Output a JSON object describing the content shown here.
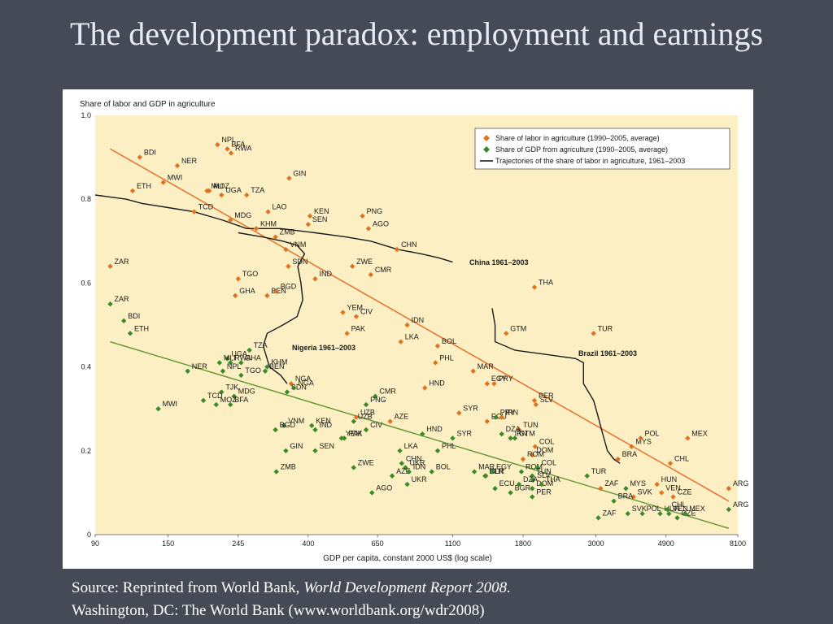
{
  "slide": {
    "title": "The development paradox: employment and earnings",
    "source_prefix": "Source: Reprinted from World Bank, ",
    "source_title": "World Development Report 2008.",
    "source_line2": "Washington, DC: The World Bank (www.worldbank.org/wdr2008)"
  },
  "colors": {
    "background": "#464a57",
    "plot_area": "#fcefc3",
    "labor_series": "#e07320",
    "gdp_series": "#3a8a2a",
    "trajectory": "#1a1a1a",
    "labor_trend": "#e8702a",
    "gdp_trend": "#6a9a3a"
  },
  "chart_data": {
    "type": "scatter",
    "title": "",
    "ylabel": "Share of labor and GDP in agriculture",
    "xlabel": "GDP per capita, constant 2000 US$ (log scale)",
    "x_scale": "log",
    "xlim": [
      90,
      8100
    ],
    "ylim": [
      0,
      1.0
    ],
    "x_ticks": [
      90,
      150,
      245,
      400,
      650,
      1100,
      1800,
      3000,
      4900,
      8100
    ],
    "y_ticks": [
      0,
      0.2,
      0.4,
      0.6,
      0.8,
      1.0
    ],
    "y_tick_labels": [
      "0",
      "0.2",
      "0.4",
      "0.6",
      "0.8",
      "1.0"
    ],
    "grid": false,
    "legend_position": "top-right",
    "legend": [
      "Share of labor in agriculture (1990–2005, average)",
      "Share of GDP from agriculture (1990–2005, average)",
      "Trajectories of the share of labor in agriculture, 1961–2003"
    ],
    "series": [
      {
        "name": "Share of labor in agriculture (1990–2005, average)",
        "marker": "diamond",
        "points": [
          {
            "label": "BDI",
            "x": 123,
            "y": 0.9
          },
          {
            "label": "NER",
            "x": 160,
            "y": 0.88
          },
          {
            "label": "NPL",
            "x": 212,
            "y": 0.93
          },
          {
            "label": "BFA",
            "x": 227,
            "y": 0.92
          },
          {
            "label": "RWA",
            "x": 233,
            "y": 0.91
          },
          {
            "label": "ETH",
            "x": 117,
            "y": 0.82
          },
          {
            "label": "MWI",
            "x": 145,
            "y": 0.84
          },
          {
            "label": "MLI",
            "x": 197,
            "y": 0.82
          },
          {
            "label": "MOZ",
            "x": 200,
            "y": 0.82
          },
          {
            "label": "UGA",
            "x": 218,
            "y": 0.81
          },
          {
            "label": "TZA",
            "x": 260,
            "y": 0.81
          },
          {
            "label": "GIN",
            "x": 350,
            "y": 0.85
          },
          {
            "label": "TCD",
            "x": 180,
            "y": 0.77
          },
          {
            "label": "MDG",
            "x": 232,
            "y": 0.75
          },
          {
            "label": "LAO",
            "x": 302,
            "y": 0.77
          },
          {
            "label": "KEN",
            "x": 405,
            "y": 0.76
          },
          {
            "label": "SEN",
            "x": 400,
            "y": 0.74
          },
          {
            "label": "KHM",
            "x": 278,
            "y": 0.73
          },
          {
            "label": "ZMB",
            "x": 318,
            "y": 0.71
          },
          {
            "label": "PNG",
            "x": 585,
            "y": 0.76
          },
          {
            "label": "AGO",
            "x": 610,
            "y": 0.73
          },
          {
            "label": "ZAR",
            "x": 100,
            "y": 0.64
          },
          {
            "label": "VNM",
            "x": 342,
            "y": 0.68
          },
          {
            "label": "SDN",
            "x": 348,
            "y": 0.64
          },
          {
            "label": "CHN",
            "x": 745,
            "y": 0.68
          },
          {
            "label": "ZWE",
            "x": 545,
            "y": 0.64
          },
          {
            "label": "CMR",
            "x": 620,
            "y": 0.62
          },
          {
            "label": "IND",
            "x": 420,
            "y": 0.61
          },
          {
            "label": "TGO",
            "x": 245,
            "y": 0.61
          },
          {
            "label": "GHA",
            "x": 240,
            "y": 0.57
          },
          {
            "label": "BEN",
            "x": 300,
            "y": 0.57
          },
          {
            "label": "BGD",
            "x": 320,
            "y": 0.58
          },
          {
            "label": "THA",
            "x": 1950,
            "y": 0.59
          },
          {
            "label": "CIV",
            "x": 560,
            "y": 0.52
          },
          {
            "label": "YEM",
            "x": 510,
            "y": 0.53
          },
          {
            "label": "IDN",
            "x": 800,
            "y": 0.5
          },
          {
            "label": "PAK",
            "x": 525,
            "y": 0.48
          },
          {
            "label": "LKA",
            "x": 765,
            "y": 0.46
          },
          {
            "label": "BOL",
            "x": 990,
            "y": 0.45
          },
          {
            "label": "TUR",
            "x": 2950,
            "y": 0.48
          },
          {
            "label": "GTM",
            "x": 1600,
            "y": 0.48
          },
          {
            "label": "PHL",
            "x": 975,
            "y": 0.41
          },
          {
            "label": "MAR",
            "x": 1270,
            "y": 0.39
          },
          {
            "label": "EGY",
            "x": 1400,
            "y": 0.36
          },
          {
            "label": "PRY",
            "x": 1470,
            "y": 0.36
          },
          {
            "label": "HND",
            "x": 905,
            "y": 0.35
          },
          {
            "label": "NGA",
            "x": 355,
            "y": 0.36
          },
          {
            "label": "SYR",
            "x": 1150,
            "y": 0.29
          },
          {
            "label": "PER",
            "x": 1950,
            "y": 0.32
          },
          {
            "label": "SLV",
            "x": 1970,
            "y": 0.31
          },
          {
            "label": "UZB",
            "x": 560,
            "y": 0.28
          },
          {
            "label": "AZE",
            "x": 710,
            "y": 0.27
          },
          {
            "label": "ECU",
            "x": 1400,
            "y": 0.27
          },
          {
            "label": "IRN",
            "x": 1550,
            "y": 0.28
          },
          {
            "label": "TUN",
            "x": 1750,
            "y": 0.25
          },
          {
            "label": "COL",
            "x": 1960,
            "y": 0.21
          },
          {
            "label": "DOM",
            "x": 1920,
            "y": 0.19
          },
          {
            "label": "ROM",
            "x": 1800,
            "y": 0.18
          },
          {
            "label": "BLR",
            "x": 1390,
            "y": 0.14
          },
          {
            "label": "MYS",
            "x": 3850,
            "y": 0.21
          },
          {
            "label": "POL",
            "x": 4100,
            "y": 0.23
          },
          {
            "label": "MEX",
            "x": 5700,
            "y": 0.23
          },
          {
            "label": "BRA",
            "x": 3500,
            "y": 0.18
          },
          {
            "label": "CHL",
            "x": 5050,
            "y": 0.17
          },
          {
            "label": "ZAF",
            "x": 3100,
            "y": 0.11
          },
          {
            "label": "HUN",
            "x": 4600,
            "y": 0.12
          },
          {
            "label": "SVK",
            "x": 3900,
            "y": 0.09
          },
          {
            "label": "VEN",
            "x": 4750,
            "y": 0.1
          },
          {
            "label": "CZE",
            "x": 5150,
            "y": 0.09
          },
          {
            "label": "ARG",
            "x": 7600,
            "y": 0.11
          }
        ]
      },
      {
        "name": "Share of GDP from agriculture (1990–2005, average)",
        "marker": "diamond",
        "points": [
          {
            "label": "ZAR",
            "x": 100,
            "y": 0.55
          },
          {
            "label": "BDI",
            "x": 110,
            "y": 0.51
          },
          {
            "label": "ETH",
            "x": 115,
            "y": 0.48
          },
          {
            "label": "UGA",
            "x": 227,
            "y": 0.42
          },
          {
            "label": "RWA",
            "x": 232,
            "y": 0.41
          },
          {
            "label": "MLI",
            "x": 215,
            "y": 0.41
          },
          {
            "label": "NPL",
            "x": 220,
            "y": 0.39
          },
          {
            "label": "TZA",
            "x": 265,
            "y": 0.44
          },
          {
            "label": "GHA",
            "x": 250,
            "y": 0.41
          },
          {
            "label": "KHM",
            "x": 300,
            "y": 0.4
          },
          {
            "label": "NER",
            "x": 172,
            "y": 0.39
          },
          {
            "label": "TGO",
            "x": 250,
            "y": 0.38
          },
          {
            "label": "BEN",
            "x": 296,
            "y": 0.39
          },
          {
            "label": "TJK",
            "x": 218,
            "y": 0.34
          },
          {
            "label": "SDN",
            "x": 345,
            "y": 0.34
          },
          {
            "label": "NGA",
            "x": 362,
            "y": 0.35
          },
          {
            "label": "TCD",
            "x": 192,
            "y": 0.32
          },
          {
            "label": "MDG",
            "x": 238,
            "y": 0.33
          },
          {
            "label": "MWI",
            "x": 140,
            "y": 0.3
          },
          {
            "label": "MOZ",
            "x": 210,
            "y": 0.31
          },
          {
            "label": "BFA",
            "x": 232,
            "y": 0.31
          },
          {
            "label": "CMR",
            "x": 640,
            "y": 0.33
          },
          {
            "label": "PNG",
            "x": 600,
            "y": 0.31
          },
          {
            "label": "UZB",
            "x": 550,
            "y": 0.27
          },
          {
            "label": "VNM",
            "x": 338,
            "y": 0.26
          },
          {
            "label": "BGD",
            "x": 318,
            "y": 0.25
          },
          {
            "label": "IND",
            "x": 420,
            "y": 0.25
          },
          {
            "label": "KEN",
            "x": 410,
            "y": 0.26
          },
          {
            "label": "CIV",
            "x": 600,
            "y": 0.25
          },
          {
            "label": "PAK",
            "x": 515,
            "y": 0.23
          },
          {
            "label": "YEM",
            "x": 505,
            "y": 0.23
          },
          {
            "label": "GIN",
            "x": 342,
            "y": 0.2
          },
          {
            "label": "SEN",
            "x": 420,
            "y": 0.2
          },
          {
            "label": "HND",
            "x": 890,
            "y": 0.24
          },
          {
            "label": "SYR",
            "x": 1100,
            "y": 0.23
          },
          {
            "label": "LKA",
            "x": 760,
            "y": 0.2
          },
          {
            "label": "PHL",
            "x": 990,
            "y": 0.2
          },
          {
            "label": "ZWE",
            "x": 550,
            "y": 0.16
          },
          {
            "label": "CHN",
            "x": 770,
            "y": 0.17
          },
          {
            "label": "UKR",
            "x": 790,
            "y": 0.16
          },
          {
            "label": "AZE",
            "x": 720,
            "y": 0.14
          },
          {
            "label": "IDN",
            "x": 810,
            "y": 0.15
          },
          {
            "label": "BOL",
            "x": 950,
            "y": 0.15
          },
          {
            "label": "MAR",
            "x": 1280,
            "y": 0.15
          },
          {
            "label": "ZMB",
            "x": 320,
            "y": 0.15
          },
          {
            "label": "AGO",
            "x": 625,
            "y": 0.1
          },
          {
            "label": "UKR",
            "x": 800,
            "y": 0.12
          },
          {
            "label": "BLR",
            "x": 1380,
            "y": 0.14
          },
          {
            "label": "EGY",
            "x": 1450,
            "y": 0.15
          },
          {
            "label": "ECU",
            "x": 1480,
            "y": 0.11
          },
          {
            "label": "PRY",
            "x": 1490,
            "y": 0.28
          },
          {
            "label": "DZA",
            "x": 1550,
            "y": 0.24
          },
          {
            "label": "GTM",
            "x": 1700,
            "y": 0.23
          },
          {
            "label": "IRN",
            "x": 1650,
            "y": 0.23
          },
          {
            "label": "ROM",
            "x": 1780,
            "y": 0.15
          },
          {
            "label": "COL",
            "x": 1990,
            "y": 0.16
          },
          {
            "label": "TUN",
            "x": 1920,
            "y": 0.14
          },
          {
            "label": "SLV",
            "x": 1930,
            "y": 0.13
          },
          {
            "label": "BGR",
            "x": 1650,
            "y": 0.1
          },
          {
            "label": "DZA",
            "x": 1750,
            "y": 0.12
          },
          {
            "label": "DOM",
            "x": 1920,
            "y": 0.11
          },
          {
            "label": "PER",
            "x": 1920,
            "y": 0.09
          },
          {
            "label": "THA",
            "x": 2050,
            "y": 0.12
          },
          {
            "label": "TUR",
            "x": 2820,
            "y": 0.14
          },
          {
            "label": "MYS",
            "x": 3700,
            "y": 0.11
          },
          {
            "label": "BRA",
            "x": 3400,
            "y": 0.08
          },
          {
            "label": "SVK",
            "x": 3750,
            "y": 0.05
          },
          {
            "label": "ZAF",
            "x": 3050,
            "y": 0.04
          },
          {
            "label": "POL",
            "x": 4150,
            "y": 0.05
          },
          {
            "label": "HUN",
            "x": 4700,
            "y": 0.05
          },
          {
            "label": "CHL",
            "x": 4950,
            "y": 0.06
          },
          {
            "label": "VEN",
            "x": 5000,
            "y": 0.05
          },
          {
            "label": "CZE",
            "x": 5300,
            "y": 0.04
          },
          {
            "label": "MEX",
            "x": 5600,
            "y": 0.05
          },
          {
            "label": "ARG",
            "x": 7600,
            "y": 0.06
          }
        ]
      }
    ],
    "trend_lines": [
      {
        "series": "labor",
        "from": {
          "x": 100,
          "y": 0.92
        },
        "to": {
          "x": 7600,
          "y": 0.08
        }
      },
      {
        "series": "gdp",
        "from": {
          "x": 100,
          "y": 0.46
        },
        "to": {
          "x": 7600,
          "y": 0.015
        }
      }
    ],
    "trajectories": [
      {
        "label": "China 1961–2003",
        "points": [
          [
            90,
            0.81
          ],
          [
            112,
            0.8
          ],
          [
            125,
            0.79
          ],
          [
            150,
            0.78
          ],
          [
            180,
            0.77
          ],
          [
            220,
            0.75
          ],
          [
            260,
            0.73
          ],
          [
            330,
            0.73
          ],
          [
            420,
            0.72
          ],
          [
            520,
            0.71
          ],
          [
            620,
            0.7
          ],
          [
            750,
            0.68
          ],
          [
            880,
            0.67
          ],
          [
            1000,
            0.66
          ],
          [
            1100,
            0.65
          ]
        ]
      },
      {
        "label": "Nigeria 1961–2003",
        "points": [
          [
            245,
            0.72
          ],
          [
            290,
            0.71
          ],
          [
            335,
            0.7
          ],
          [
            370,
            0.69
          ],
          [
            390,
            0.67
          ],
          [
            372,
            0.64
          ],
          [
            380,
            0.6
          ],
          [
            385,
            0.56
          ],
          [
            370,
            0.52
          ],
          [
            335,
            0.5
          ],
          [
            300,
            0.48
          ],
          [
            292,
            0.45
          ],
          [
            305,
            0.4
          ],
          [
            330,
            0.38
          ],
          [
            345,
            0.36
          ]
        ]
      },
      {
        "label": "Brazil 1961–2003",
        "points": [
          [
            1450,
            0.54
          ],
          [
            1480,
            0.5
          ],
          [
            1480,
            0.46
          ],
          [
            1700,
            0.44
          ],
          [
            2100,
            0.43
          ],
          [
            2600,
            0.42
          ],
          [
            2750,
            0.41
          ],
          [
            2750,
            0.36
          ],
          [
            2950,
            0.32
          ],
          [
            3050,
            0.28
          ],
          [
            3120,
            0.25
          ],
          [
            3250,
            0.2
          ],
          [
            3400,
            0.18
          ],
          [
            3550,
            0.17
          ]
        ]
      }
    ]
  }
}
